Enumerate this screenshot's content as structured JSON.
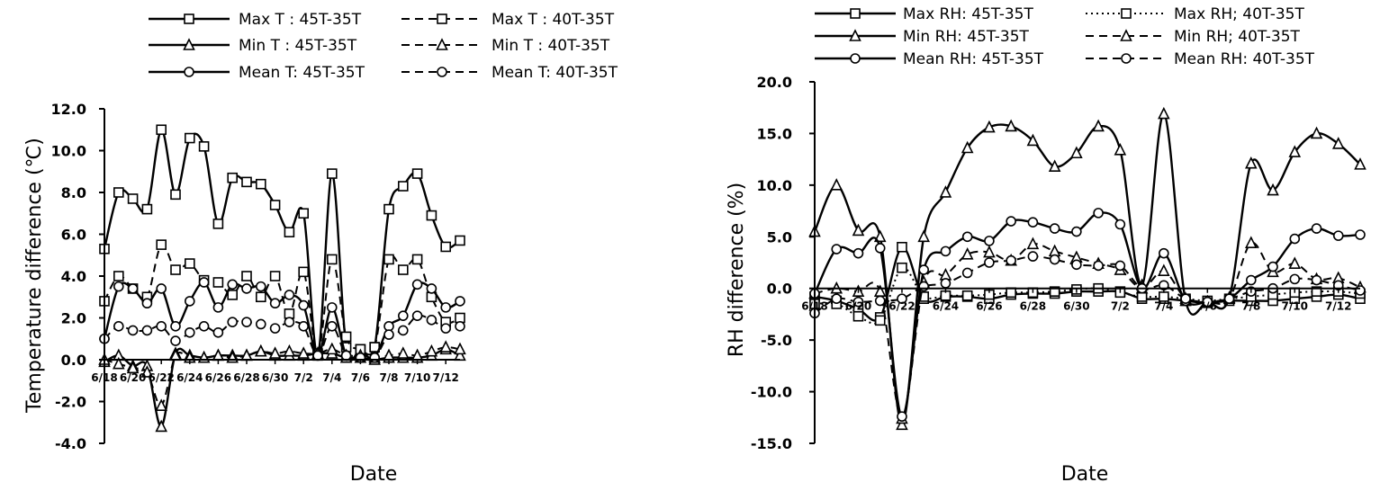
{
  "chart_data": [
    {
      "type": "line",
      "xlabel": "Date",
      "ylabel": "Temperature difference (℃)",
      "ylim": [
        -4.0,
        12.0
      ],
      "yticks": [
        "-4.0",
        "-2.0",
        "0.0",
        "2.0",
        "4.0",
        "6.0",
        "8.0",
        "10.0",
        "12.0"
      ],
      "ytick_values": [
        -4,
        -2,
        0,
        2,
        4,
        6,
        8,
        10,
        12
      ],
      "xtick_labels": [
        "6/18",
        "6/20",
        "6/22",
        "6/24",
        "6/26",
        "6/28",
        "6/30",
        "7/2",
        "7/4",
        "7/6",
        "7/8",
        "7/10",
        "7/12"
      ],
      "day_count": 26,
      "series": [
        {
          "name": "Max T : 45T-35T",
          "style": "solid",
          "marker": "square",
          "values": [
            5.3,
            8.0,
            7.7,
            7.2,
            11.0,
            7.9,
            10.6,
            10.2,
            6.5,
            8.7,
            8.5,
            8.4,
            7.4,
            6.1,
            7.0,
            0.2,
            8.9,
            0.6,
            0.5,
            0.6,
            7.2,
            8.3,
            8.9,
            6.9,
            5.4,
            5.7
          ]
        },
        {
          "name": "Max T : 40T-35T",
          "style": "dashed",
          "marker": "square",
          "values": [
            2.8,
            4.0,
            3.4,
            3.0,
            5.5,
            4.3,
            4.6,
            3.8,
            3.7,
            3.1,
            4.0,
            3.0,
            4.0,
            2.2,
            4.2,
            0.3,
            4.8,
            1.1,
            0.5,
            0.6,
            4.8,
            4.3,
            4.8,
            3.0,
            1.8,
            2.0
          ]
        },
        {
          "name": "Min T : 45T-35T",
          "style": "solid",
          "marker": "triangle",
          "values": [
            -0.1,
            0.2,
            -0.3,
            -0.3,
            -3.2,
            0.3,
            0.2,
            0.1,
            0.2,
            0.2,
            0.2,
            0.4,
            0.2,
            0.2,
            0.2,
            0.3,
            0.3,
            0.1,
            0.1,
            0.0,
            0.1,
            0.1,
            0.1,
            0.2,
            0.5,
            0.2
          ]
        },
        {
          "name": "Min T : 40T-35T",
          "style": "dashed",
          "marker": "triangle",
          "values": [
            0.0,
            -0.2,
            -0.4,
            -0.6,
            -2.2,
            0.2,
            0.1,
            0.1,
            0.2,
            0.1,
            0.2,
            0.4,
            0.3,
            0.4,
            0.3,
            0.3,
            0.5,
            0.2,
            0.2,
            0.1,
            0.2,
            0.3,
            0.2,
            0.4,
            0.6,
            0.5
          ]
        },
        {
          "name": "Mean T: 45T-35T",
          "style": "solid",
          "marker": "circle",
          "values": [
            1.0,
            3.5,
            3.4,
            2.7,
            3.4,
            1.6,
            2.8,
            3.7,
            2.5,
            3.6,
            3.4,
            3.5,
            2.7,
            3.1,
            2.6,
            0.2,
            2.5,
            0.2,
            0.1,
            0.1,
            1.6,
            2.1,
            3.6,
            3.4,
            2.5,
            2.8
          ]
        },
        {
          "name": "Mean T: 40T-35T",
          "style": "dashed",
          "marker": "circle",
          "values": [
            1.0,
            1.6,
            1.4,
            1.4,
            1.6,
            0.9,
            1.3,
            1.6,
            1.3,
            1.8,
            1.8,
            1.7,
            1.5,
            1.8,
            1.6,
            0.2,
            1.6,
            0.2,
            0.1,
            0.1,
            1.2,
            1.4,
            2.1,
            1.9,
            1.5,
            1.6
          ]
        }
      ]
    },
    {
      "type": "line",
      "xlabel": "Date",
      "ylabel": "RH difference (%)",
      "ylim": [
        -15.0,
        20.0
      ],
      "yticks": [
        "-15.0",
        "-10.0",
        "-5.0",
        "0.0",
        "5.0",
        "10.0",
        "15.0",
        "20.0"
      ],
      "ytick_values": [
        -15,
        -10,
        -5,
        0,
        5,
        10,
        15,
        20
      ],
      "xtick_labels": [
        "6/18",
        "6/20",
        "6/22",
        "6/24",
        "6/26",
        "6/28",
        "6/30",
        "7/2",
        "7/4",
        "7/6",
        "7/8",
        "7/10",
        "7/12"
      ],
      "day_count": 26,
      "series": [
        {
          "name": "Max RH: 45T-35T",
          "style": "solid",
          "marker": "square",
          "values": [
            -0.8,
            -1.2,
            -2.0,
            -2.8,
            4.0,
            -1.0,
            -0.8,
            -0.8,
            -1.0,
            -0.6,
            -0.5,
            -0.5,
            -0.3,
            -0.3,
            -0.3,
            -1.0,
            -1.0,
            -1.2,
            -1.4,
            -1.2,
            -1.2,
            -1.2,
            -1.0,
            -0.8,
            -0.6,
            -1.0
          ]
        },
        {
          "name": "Max RH; 40T-35T",
          "style": "dotted",
          "marker": "square",
          "values": [
            -1.5,
            -1.5,
            -2.7,
            -3.1,
            2.0,
            -0.8,
            -0.7,
            -0.7,
            -0.6,
            -0.4,
            -0.4,
            -0.3,
            -0.1,
            0.0,
            -0.4,
            -0.8,
            -0.8,
            -1.0,
            -1.2,
            -1.0,
            -0.8,
            -0.6,
            -0.4,
            -0.3,
            -0.3,
            -0.5
          ]
        },
        {
          "name": "Min RH: 45T-35T",
          "style": "solid",
          "marker": "triangle",
          "values": [
            5.5,
            10.0,
            5.6,
            5.0,
            -13.2,
            5.0,
            9.3,
            13.6,
            15.6,
            15.7,
            14.3,
            11.8,
            13.1,
            15.7,
            13.4,
            0.3,
            16.9,
            -1.2,
            -1.3,
            -0.9,
            12.1,
            9.5,
            13.2,
            15.0,
            14.0,
            12.0
          ]
        },
        {
          "name": "Min RH; 40T-35T",
          "style": "dashed",
          "marker": "triangle",
          "values": [
            -0.5,
            0.0,
            -0.3,
            -0.3,
            -12.6,
            0.6,
            1.3,
            3.3,
            3.5,
            2.7,
            4.3,
            3.6,
            3.0,
            2.4,
            1.8,
            0.0,
            1.7,
            -1.0,
            -1.3,
            -1.0,
            4.4,
            1.6,
            2.4,
            0.9,
            1.0,
            0.1
          ]
        },
        {
          "name": "Mean RH: 45T-35T",
          "style": "solid",
          "marker": "circle",
          "values": [
            -0.5,
            3.8,
            3.4,
            3.9,
            -12.4,
            1.8,
            3.6,
            5.0,
            4.6,
            6.5,
            6.4,
            5.8,
            5.5,
            7.3,
            6.2,
            0.0,
            3.4,
            -1.2,
            -1.3,
            -1.0,
            0.8,
            2.1,
            4.8,
            5.8,
            5.1,
            5.2
          ]
        },
        {
          "name": "Mean RH: 40T-35T",
          "style": "dashed",
          "marker": "circle",
          "values": [
            -2.4,
            -1.0,
            -1.3,
            -1.2,
            -1.0,
            0.2,
            0.5,
            1.5,
            2.5,
            2.7,
            3.1,
            2.8,
            2.3,
            2.2,
            2.2,
            0.0,
            0.3,
            -1.0,
            -1.3,
            -1.0,
            -0.3,
            0.0,
            0.9,
            0.8,
            0.3,
            -0.2
          ]
        }
      ]
    }
  ]
}
